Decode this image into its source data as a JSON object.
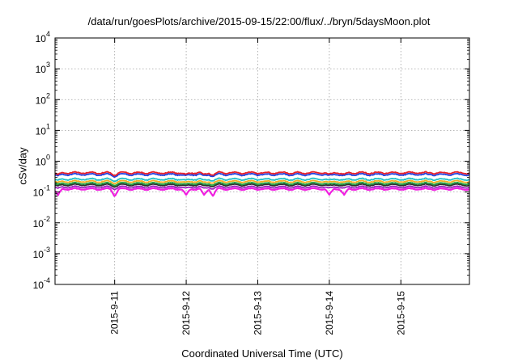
{
  "chart_data": {
    "type": "line",
    "title": "/data/run/goesPlots/archive/2015-09-15/22:00/flux/../bryn/5daysMoon.plot",
    "xlabel": "Coordinated Universal Time (UTC)",
    "ylabel": "cSv/day",
    "yscale": "log",
    "ylim": [
      "1e-4",
      "1e4"
    ],
    "yticks": [
      {
        "base": "10",
        "exp": "-4",
        "value": 0.0001
      },
      {
        "base": "10",
        "exp": "-3",
        "value": 0.001
      },
      {
        "base": "10",
        "exp": "-2",
        "value": 0.01
      },
      {
        "base": "10",
        "exp": "-1",
        "value": 0.1
      },
      {
        "base": "10",
        "exp": "0",
        "value": 1
      },
      {
        "base": "10",
        "exp": "1",
        "value": 10
      },
      {
        "base": "10",
        "exp": "2",
        "value": 100
      },
      {
        "base": "10",
        "exp": "3",
        "value": 1000
      },
      {
        "base": "10",
        "exp": "4",
        "value": 10000
      }
    ],
    "xlim": [
      "2015-09-10 04:00",
      "2015-09-15 23:00"
    ],
    "xticks": [
      {
        "label": "2015-9-11",
        "date": "2015-09-11"
      },
      {
        "label": "2015-9-12",
        "date": "2015-09-12"
      },
      {
        "label": "2015-9-13",
        "date": "2015-09-13"
      },
      {
        "label": "2015-9-14",
        "date": "2015-09-14"
      },
      {
        "label": "2015-9-15",
        "date": "2015-09-15"
      }
    ],
    "grid": true,
    "legend": "none",
    "series": [
      {
        "color": "#e8202a",
        "level": 0.42,
        "dip_depth": 0.15
      },
      {
        "color": "#2040e0",
        "level": 0.37,
        "dip_depth": 0.12
      },
      {
        "color": "#22c0c8",
        "level": 0.26,
        "dip_depth": 0.1
      },
      {
        "color": "#f0b020",
        "level": 0.22,
        "dip_depth": 0.1
      },
      {
        "color": "#20a040",
        "level": 0.19,
        "dip_depth": 0.1
      },
      {
        "color": "#303030",
        "level": 0.17,
        "dip_depth": 0.1
      },
      {
        "color": "#a020c0",
        "level": 0.145,
        "dip_depth": 0.12
      },
      {
        "color": "#f020e0",
        "level": 0.125,
        "dip_depth": 0.4
      }
    ],
    "dip_dates": [
      "2015-09-10 05:00",
      "2015-09-11 00:00",
      "2015-09-12 00:00",
      "2015-09-12 06:00",
      "2015-09-12 09:00",
      "2015-09-14 00:00",
      "2015-09-14 05:00"
    ],
    "series_count_estimate": 8
  }
}
